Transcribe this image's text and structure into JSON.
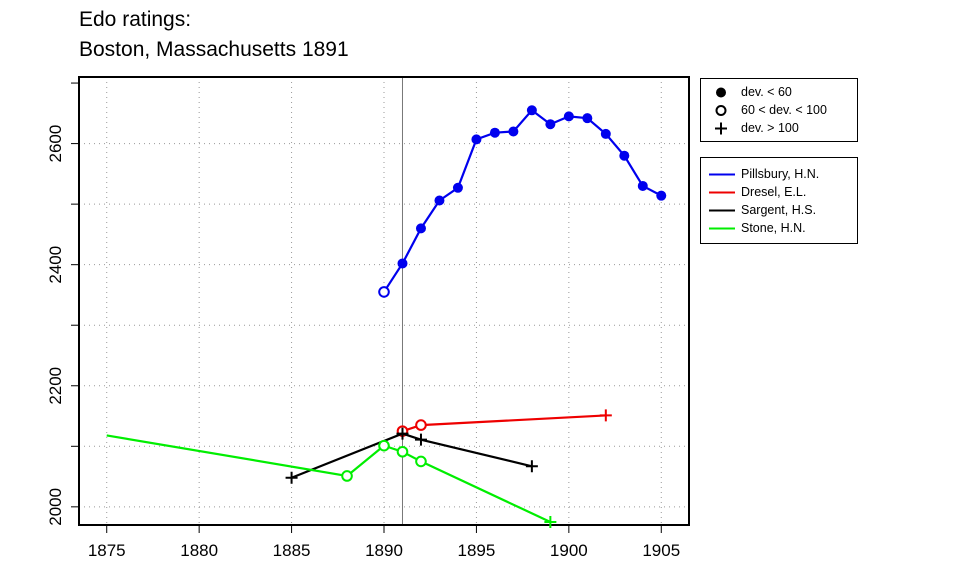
{
  "title_lines": [
    "Edo ratings:",
    "Boston, Massachusetts 1891"
  ],
  "chart_data": {
    "type": "line",
    "title": "Edo ratings: Boston, Massachusetts 1891",
    "xlabel": "",
    "ylabel": "",
    "xlim": [
      1873.5,
      1906.5
    ],
    "ylim": [
      1970,
      2710
    ],
    "x_ticks": [
      1875,
      1880,
      1885,
      1890,
      1895,
      1900,
      1905
    ],
    "y_ticks": [
      2000,
      2200,
      2400,
      2600
    ],
    "grid": true,
    "event_year": 1891,
    "marker_legend": [
      {
        "label": "dev. < 60",
        "marker": "filled"
      },
      {
        "label": "60 < dev. < 100",
        "marker": "open"
      },
      {
        "label": "dev. > 100",
        "marker": "plus"
      }
    ],
    "series": [
      {
        "name": "Pillsbury, H.N.",
        "color": "#0000ee",
        "points": [
          {
            "x": 1890,
            "y": 2355,
            "m": "open"
          },
          {
            "x": 1891,
            "y": 2402,
            "m": "filled"
          },
          {
            "x": 1892,
            "y": 2460,
            "m": "filled"
          },
          {
            "x": 1893,
            "y": 2506,
            "m": "filled"
          },
          {
            "x": 1894,
            "y": 2527,
            "m": "filled"
          },
          {
            "x": 1895,
            "y": 2607,
            "m": "filled"
          },
          {
            "x": 1896,
            "y": 2618,
            "m": "filled"
          },
          {
            "x": 1897,
            "y": 2620,
            "m": "filled"
          },
          {
            "x": 1898,
            "y": 2655,
            "m": "filled"
          },
          {
            "x": 1899,
            "y": 2632,
            "m": "filled"
          },
          {
            "x": 1900,
            "y": 2645,
            "m": "filled"
          },
          {
            "x": 1901,
            "y": 2642,
            "m": "filled"
          },
          {
            "x": 1902,
            "y": 2616,
            "m": "filled"
          },
          {
            "x": 1903,
            "y": 2580,
            "m": "filled"
          },
          {
            "x": 1904,
            "y": 2530,
            "m": "filled"
          },
          {
            "x": 1905,
            "y": 2514,
            "m": "filled"
          }
        ]
      },
      {
        "name": "Dresel, E.L.",
        "color": "#ee0000",
        "points": [
          {
            "x": 1891,
            "y": 2125,
            "m": "open"
          },
          {
            "x": 1892,
            "y": 2135,
            "m": "open"
          },
          {
            "x": 1902,
            "y": 2151,
            "m": "plus"
          }
        ]
      },
      {
        "name": "Sargent, H.S.",
        "color": "#000000",
        "points": [
          {
            "x": 1885,
            "y": 2048,
            "m": "plus"
          },
          {
            "x": 1891,
            "y": 2121,
            "m": "plus"
          },
          {
            "x": 1892,
            "y": 2111,
            "m": "plus"
          },
          {
            "x": 1898,
            "y": 2067,
            "m": "plus"
          }
        ]
      },
      {
        "name": "Stone, H.N.",
        "color": "#00ee00",
        "points": [
          {
            "x": 1875,
            "y": 2118,
            "m": "none"
          },
          {
            "x": 1888,
            "y": 2051,
            "m": "open"
          },
          {
            "x": 1890,
            "y": 2101,
            "m": "open"
          },
          {
            "x": 1891,
            "y": 2091,
            "m": "open"
          },
          {
            "x": 1892,
            "y": 2075,
            "m": "open"
          },
          {
            "x": 1899,
            "y": 1975,
            "m": "plus"
          }
        ]
      }
    ]
  }
}
